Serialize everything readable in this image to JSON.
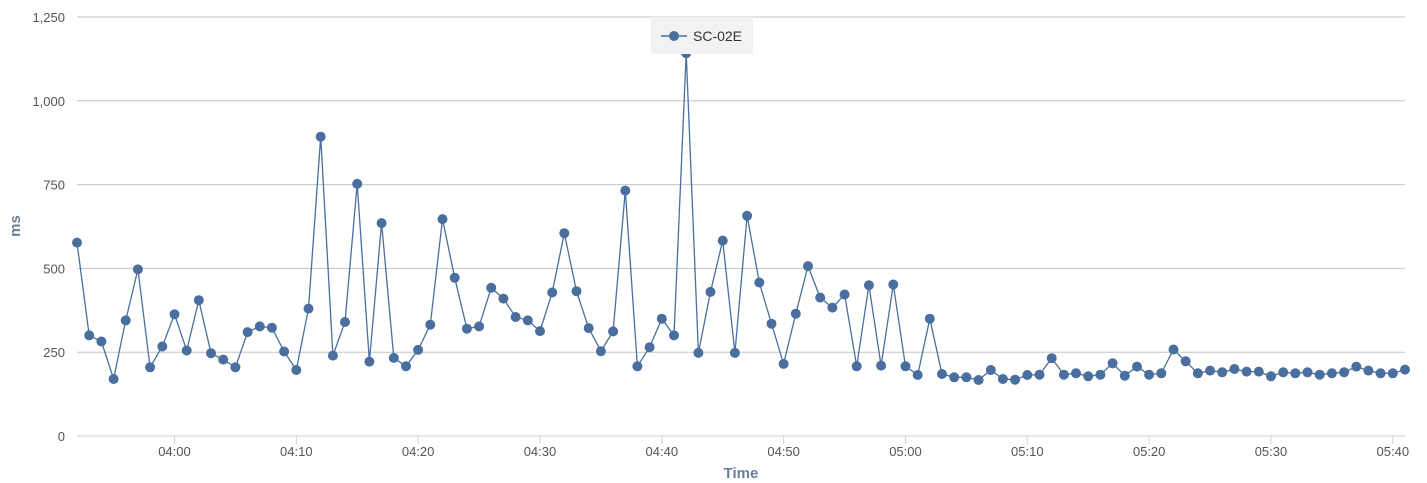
{
  "chart_data": {
    "type": "line",
    "title": "",
    "xlabel": "Time",
    "ylabel": "ms",
    "ylim": [
      0,
      1250
    ],
    "yticks": [
      0,
      250,
      500,
      750,
      1000,
      1250
    ],
    "ytick_labels": [
      "0",
      "250",
      "500",
      "750",
      "1,000",
      "1,250"
    ],
    "x_start": "03:52",
    "x_end": "05:41",
    "x_step_minutes": 1,
    "xticks": [
      "04:00",
      "04:10",
      "04:20",
      "04:30",
      "04:40",
      "04:50",
      "05:00",
      "05:10",
      "05:20",
      "05:30",
      "05:40"
    ],
    "grid": true,
    "legend": "top-center",
    "series": [
      {
        "name": "SC-02E",
        "color": "#4a6f9e",
        "x": [
          "03:52",
          "03:53",
          "03:54",
          "03:55",
          "03:56",
          "03:57",
          "03:58",
          "03:59",
          "04:00",
          "04:01",
          "04:02",
          "04:03",
          "04:04",
          "04:05",
          "04:06",
          "04:07",
          "04:08",
          "04:09",
          "04:10",
          "04:11",
          "04:12",
          "04:13",
          "04:14",
          "04:15",
          "04:16",
          "04:17",
          "04:18",
          "04:19",
          "04:20",
          "04:21",
          "04:22",
          "04:23",
          "04:24",
          "04:25",
          "04:26",
          "04:27",
          "04:28",
          "04:29",
          "04:30",
          "04:31",
          "04:32",
          "04:33",
          "04:34",
          "04:35",
          "04:36",
          "04:37",
          "04:38",
          "04:39",
          "04:40",
          "04:41",
          "04:42",
          "04:43",
          "04:44",
          "04:45",
          "04:46",
          "04:47",
          "04:48",
          "04:49",
          "04:50",
          "04:51",
          "04:52",
          "04:53",
          "04:54",
          "04:55",
          "04:56",
          "04:57",
          "04:58",
          "04:59",
          "05:00",
          "05:01",
          "05:02",
          "05:03",
          "05:04",
          "05:05",
          "05:06",
          "05:07",
          "05:08",
          "05:09",
          "05:10",
          "05:11",
          "05:12",
          "05:13",
          "05:14",
          "05:15",
          "05:16",
          "05:17",
          "05:18",
          "05:19",
          "05:20",
          "05:21",
          "05:22",
          "05:23",
          "05:24",
          "05:25",
          "05:26",
          "05:27",
          "05:28",
          "05:29",
          "05:30",
          "05:31",
          "05:32",
          "05:33",
          "05:34",
          "05:35",
          "05:36",
          "05:37",
          "05:38",
          "05:39",
          "05:40",
          "05:41"
        ],
        "values": [
          577,
          300,
          282,
          170,
          345,
          497,
          205,
          267,
          363,
          255,
          405,
          247,
          228,
          205,
          310,
          327,
          323,
          252,
          197,
          380,
          893,
          240,
          340,
          752,
          222,
          635,
          233,
          208,
          257,
          332,
          647,
          472,
          320,
          327,
          442,
          410,
          355,
          345,
          313,
          428,
          605,
          432,
          322,
          253,
          312,
          732,
          208,
          265,
          350,
          300,
          1142,
          248,
          430,
          583,
          248,
          657,
          458,
          335,
          215,
          365,
          507,
          413,
          383,
          422,
          208,
          450,
          210,
          452,
          208,
          182,
          350,
          185,
          175,
          175,
          167,
          197,
          170,
          168,
          182,
          183,
          232,
          183,
          187,
          178,
          183,
          217,
          180,
          207,
          183,
          187,
          258,
          223,
          187,
          195,
          190,
          200,
          192,
          192,
          178,
          190,
          187,
          190,
          183,
          187,
          190,
          207,
          195,
          187,
          187,
          198
        ]
      }
    ]
  }
}
